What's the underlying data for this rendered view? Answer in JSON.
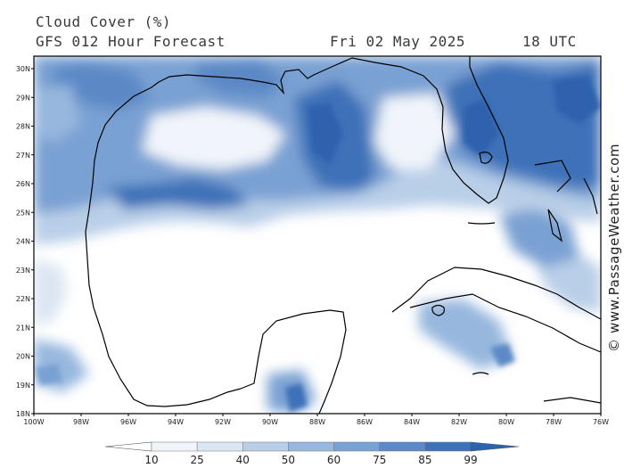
{
  "header": {
    "title": "Cloud Cover (%)",
    "subtitle": "GFS 012 Hour Forecast",
    "date": "Fri 02 May 2025",
    "time": "18 UTC"
  },
  "map": {
    "lat_labels": [
      "30N",
      "29N",
      "28N",
      "27N",
      "26N",
      "25N",
      "24N",
      "23N",
      "22N",
      "21N",
      "20N",
      "19N",
      "18N"
    ],
    "lon_labels": [
      "100W",
      "98W",
      "96W",
      "94W",
      "92W",
      "90W",
      "88W",
      "86W",
      "84W",
      "82W",
      "80W",
      "78W",
      "76W"
    ],
    "coast_color": "#000000",
    "land_cloud_color": "#2f6fb5"
  },
  "colorbar": {
    "values": [
      "10",
      "25",
      "40",
      "50",
      "60",
      "75",
      "85",
      "99"
    ],
    "colors": [
      "#ffffff",
      "#f1f5fb",
      "#dbe6f3",
      "#b9cfe8",
      "#97b7de",
      "#7aa1d3",
      "#5b89c6",
      "#3e71b8",
      "#2d62ae"
    ]
  },
  "watermark": "© www.PassageWeather.com"
}
